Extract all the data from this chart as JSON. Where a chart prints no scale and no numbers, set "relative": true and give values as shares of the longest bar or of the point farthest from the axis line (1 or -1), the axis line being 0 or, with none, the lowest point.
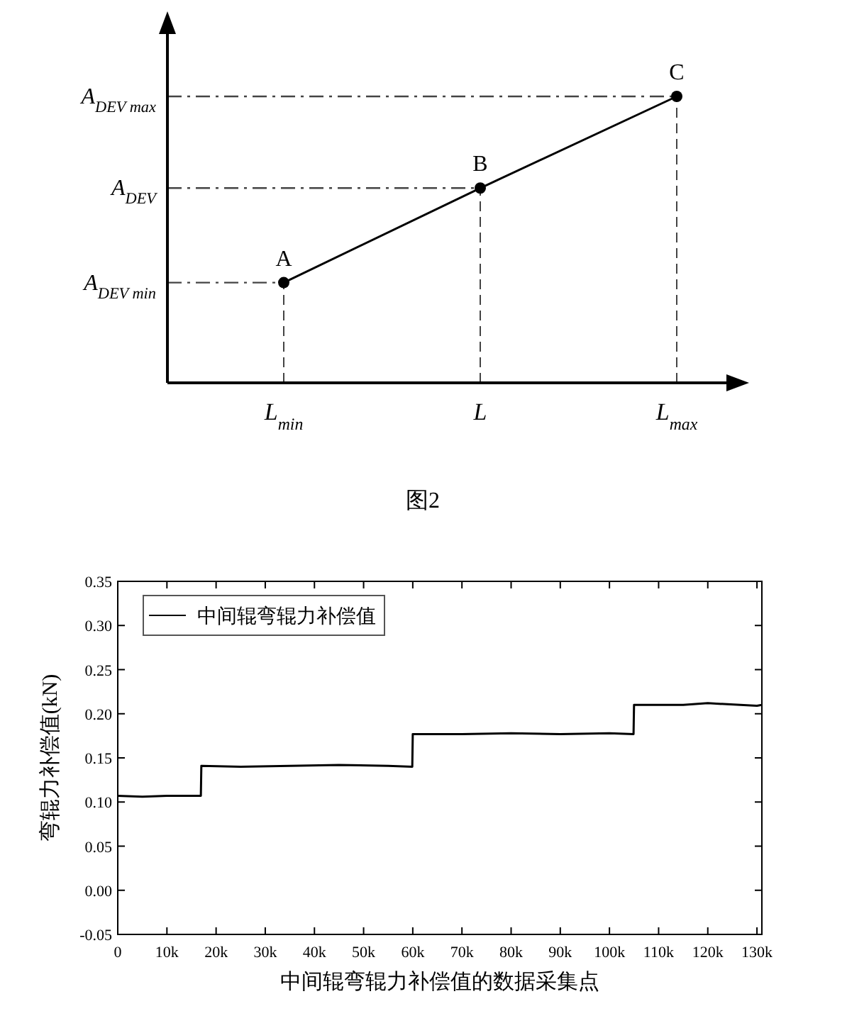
{
  "chart_data": [
    {
      "type": "line",
      "relative": true,
      "categories": [
        "L$_{min}$",
        "L",
        "L$_{max}$"
      ],
      "marker": "circle",
      "series": [
        {
          "color": "#000000",
          "values": [
            0.35,
            0.68,
            1
          ]
        }
      ],
      "ref_lines": [
        {
          "axis": "y",
          "value": 0.35,
          "label": "A$_{DEV min}$",
          "line_style": "dashdot"
        },
        {
          "axis": "y",
          "value": 0.68,
          "label": "A$_{DEV}$",
          "line_style": "dashdot"
        },
        {
          "axis": "y",
          "value": 1,
          "label": "A$_{DEV max}$",
          "line_style": "dashdot"
        },
        {
          "axis": "x",
          "value": "L$_{min}$",
          "line_style": "dashed"
        },
        {
          "axis": "x",
          "value": "L",
          "line_style": "dashed"
        },
        {
          "axis": "x",
          "value": "L$_{max}$",
          "line_style": "dashed"
        }
      ],
      "annotations": [
        {
          "text": "A",
          "x": "L$_{min}$",
          "y": 0.35
        },
        {
          "text": "B",
          "x": "L",
          "y": 0.68
        },
        {
          "text": "C",
          "x": "L$_{max}$",
          "y": 1
        },
        "图2"
      ]
    },
    {
      "type": "line",
      "xlabel": "中间辊弯辊力补偿值的数据采集点",
      "ylabel": "弯辊力补偿值(kN)",
      "legend": "top left",
      "grid": false,
      "xlim": [
        0,
        131000
      ],
      "xticks": [
        0,
        {
          "value": 10000,
          "label": "10k"
        },
        {
          "value": 20000,
          "label": "20k"
        },
        {
          "value": 30000,
          "label": "30k"
        },
        {
          "value": 40000,
          "label": "40k"
        },
        {
          "value": 50000,
          "label": "50k"
        },
        {
          "value": 60000,
          "label": "60k"
        },
        {
          "value": 70000,
          "label": "70k"
        },
        {
          "value": 80000,
          "label": "80k"
        },
        {
          "value": 90000,
          "label": "90k"
        },
        {
          "value": 100000,
          "label": "100k"
        },
        {
          "value": 110000,
          "label": "110k"
        },
        {
          "value": 120000,
          "label": "120k"
        },
        {
          "value": 130000,
          "label": "130k"
        }
      ],
      "ylim": [
        -0.05,
        0.35
      ],
      "yticks": [
        {
          "value": -0.05,
          "label": "-0.05"
        },
        {
          "value": 0,
          "label": "0.00"
        },
        {
          "value": 0.05,
          "label": "0.05"
        },
        {
          "value": 0.1,
          "label": "0.10"
        },
        {
          "value": 0.15,
          "label": "0.15"
        },
        {
          "value": 0.2,
          "label": "0.20"
        },
        {
          "value": 0.25,
          "label": "0.25"
        },
        {
          "value": 0.3,
          "label": "0.30"
        },
        {
          "value": 0.35,
          "label": "0.35"
        }
      ],
      "x": [
        0,
        5000,
        10000,
        16900,
        17000,
        25000,
        35000,
        45000,
        55000,
        59900,
        60000,
        70000,
        80000,
        90000,
        100000,
        104900,
        105000,
        115000,
        120000,
        130000,
        131000
      ],
      "series": [
        {
          "name": "中间辊弯辊力补偿值",
          "color": "#000000",
          "values": [
            0.107,
            0.106,
            0.107,
            0.107,
            0.141,
            0.14,
            0.141,
            0.142,
            0.141,
            0.14,
            0.177,
            0.177,
            0.178,
            0.177,
            0.178,
            0.177,
            0.21,
            0.21,
            0.212,
            0.209,
            0.21
          ]
        }
      ]
    }
  ]
}
